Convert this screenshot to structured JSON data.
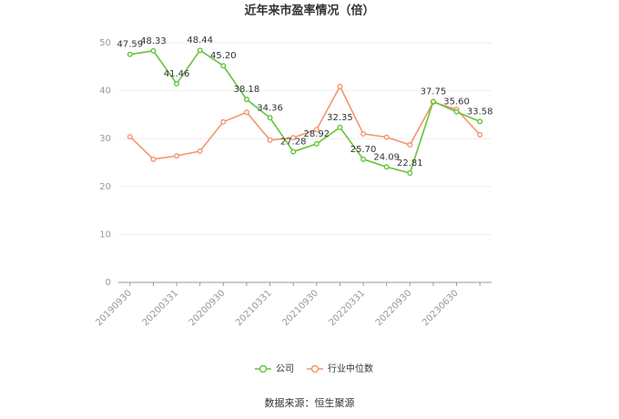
{
  "chart_data": {
    "type": "line",
    "title": "近年来市盈率情况（倍）",
    "categories": [
      "20190930",
      null,
      "20200331",
      null,
      "20200930",
      null,
      "20210331",
      null,
      "20210930",
      null,
      "20220331",
      null,
      "20220930",
      null,
      "20230630",
      null
    ],
    "series": [
      {
        "name": "公司",
        "color": "#66c33a",
        "values": [
          47.59,
          48.33,
          41.46,
          48.44,
          45.2,
          38.18,
          34.36,
          27.28,
          28.92,
          32.35,
          25.7,
          24.09,
          22.81,
          37.75,
          35.6,
          33.58
        ],
        "value_labels": [
          "47.59",
          "48.33",
          "41.46",
          "48.44",
          "45.20",
          "38.18",
          "34.36",
          "27.28",
          "28.92",
          "32.35",
          "25.70",
          "24.09",
          "22.81",
          "37.75",
          "35.60",
          "33.58"
        ]
      },
      {
        "name": "行业中位数",
        "color": "#f4956c",
        "values": [
          30.4,
          25.7,
          26.4,
          27.4,
          33.5,
          35.5,
          29.7,
          30.2,
          31.9,
          40.9,
          31.0,
          30.3,
          28.7,
          37.6,
          36.1,
          30.8
        ]
      }
    ],
    "ylim": [
      0,
      50
    ],
    "yticks": [
      0,
      10,
      20,
      30,
      40,
      50
    ],
    "grid": true,
    "legend": "bottom",
    "source": "数据来源：恒生聚源"
  }
}
